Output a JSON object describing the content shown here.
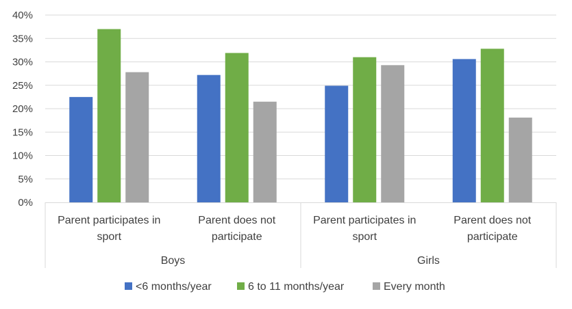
{
  "chart_data": {
    "type": "bar",
    "title": "",
    "xlabel": "",
    "ylabel": "",
    "ylim": [
      0,
      40
    ],
    "y_ticks": [
      "0%",
      "5%",
      "10%",
      "15%",
      "20%",
      "25%",
      "30%",
      "35%",
      "40%"
    ],
    "grid": true,
    "legend_position": "bottom",
    "groups": [
      {
        "label": "Boys",
        "categories": [
          "Parent participates in sport",
          "Parent does not participate"
        ]
      },
      {
        "label": "Girls",
        "categories": [
          "Parent participates in sport",
          "Parent does not participate"
        ]
      }
    ],
    "categories": [
      "Parent participates in sport",
      "Parent does not participate",
      "Parent participates in sport",
      "Parent does not participate"
    ],
    "category_lines": [
      [
        "Parent participates in",
        "sport"
      ],
      [
        "Parent does not",
        "participate"
      ],
      [
        "Parent participates in",
        "sport"
      ],
      [
        "Parent does not",
        "participate"
      ]
    ],
    "series": [
      {
        "name": "<6 months/year",
        "color": "#4472c4",
        "values": [
          22.5,
          27.2,
          24.9,
          30.6
        ]
      },
      {
        "name": "6 to 11 months/year",
        "color": "#70ad47",
        "values": [
          37.0,
          31.9,
          31.0,
          32.8
        ]
      },
      {
        "name": "Every month",
        "color": "#a5a5a5",
        "values": [
          27.8,
          21.5,
          29.3,
          18.1
        ]
      }
    ]
  }
}
